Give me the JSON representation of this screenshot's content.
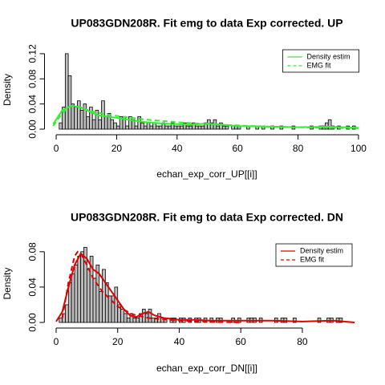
{
  "chart_data": [
    {
      "type": "histogram",
      "title": "UP083GDN208R. Fit emg to data Exp corrected. UP",
      "x_label": "echan_exp_corr_UP[[i]]",
      "y_label": "Density",
      "bins": [
        0,
        1,
        2,
        3,
        4,
        5,
        6,
        7,
        8,
        9,
        10,
        11,
        12,
        13,
        14,
        15,
        16,
        17,
        18,
        19,
        20,
        21,
        22,
        23,
        24,
        25,
        26,
        27,
        28,
        29,
        30,
        31,
        32,
        33,
        34,
        35,
        36,
        37,
        38,
        39,
        40,
        41,
        42,
        43,
        44,
        45,
        46,
        47,
        48,
        49,
        50,
        51,
        52,
        53,
        54,
        55,
        56,
        57,
        58,
        59,
        60,
        61,
        62,
        63,
        64,
        65,
        66,
        67,
        68,
        69,
        70,
        71,
        72,
        73,
        74,
        75,
        76,
        77,
        78,
        79,
        80,
        81,
        82,
        83,
        84,
        85,
        86,
        87,
        88,
        89,
        90,
        91,
        92,
        93,
        94,
        95,
        96,
        97,
        98,
        99
      ],
      "values": [
        0,
        0.01,
        0.035,
        0.12,
        0.085,
        0.04,
        0.035,
        0.045,
        0.03,
        0.04,
        0.02,
        0.035,
        0.015,
        0.03,
        0.015,
        0.045,
        0.02,
        0.025,
        0.015,
        0.01,
        0.005,
        0.02,
        0.02,
        0.005,
        0.02,
        0.015,
        0.005,
        0.02,
        0.01,
        0.005,
        0.01,
        0.005,
        0.01,
        0.005,
        0.005,
        0.01,
        0.005,
        0.005,
        0.01,
        0.005,
        0.005,
        0.005,
        0.01,
        0.005,
        0.005,
        0.01,
        0.005,
        0.005,
        0.005,
        0.01,
        0.015,
        0.01,
        0.015,
        0.005,
        0.01,
        0.005,
        0.005,
        0,
        0.005,
        0.005,
        0.005,
        0,
        0,
        0.005,
        0,
        0,
        0.005,
        0,
        0.005,
        0,
        0,
        0.005,
        0,
        0,
        0.005,
        0,
        0,
        0,
        0.005,
        0,
        0,
        0,
        0,
        0,
        0.005,
        0,
        0,
        0.005,
        0.005,
        0.01,
        0.015,
        0.005,
        0,
        0.005,
        0,
        0,
        0.005,
        0,
        0.005
      ],
      "color": "#bebebe",
      "xlim": [
        -2,
        102
      ],
      "ylim": [
        0,
        0.125
      ],
      "xticks": [
        0,
        20,
        40,
        60,
        80,
        100
      ],
      "yticks": [
        {
          "value": 0,
          "label": "0.00"
        },
        {
          "value": 0.04,
          "label": "0.04"
        },
        {
          "value": 0.08,
          "label": "0.08"
        },
        {
          "value": 0.12,
          "label": "0.12"
        }
      ],
      "legend": "topright",
      "series": [
        {
          "name": "Density estim",
          "color": "#33ee33",
          "dash": false,
          "x": [
            -1,
            2,
            5,
            8,
            11,
            14,
            17,
            20,
            25,
            30,
            35,
            40,
            45,
            50,
            55,
            60,
            70,
            80,
            90,
            100
          ],
          "values": [
            0.008,
            0.03,
            0.037,
            0.035,
            0.028,
            0.022,
            0.02,
            0.018,
            0.014,
            0.011,
            0.009,
            0.008,
            0.007,
            0.009,
            0.007,
            0.005,
            0.004,
            0.003,
            0.004,
            0.002
          ]
        },
        {
          "name": "EMG fit",
          "color": "#33ee33",
          "dash": true,
          "x": [
            -1,
            2,
            4,
            6,
            8,
            12,
            16,
            20,
            30,
            40,
            50,
            60,
            70,
            80,
            90,
            100
          ],
          "values": [
            0.005,
            0.025,
            0.035,
            0.037,
            0.034,
            0.028,
            0.024,
            0.021,
            0.015,
            0.011,
            0.008,
            0.006,
            0.004,
            0.003,
            0.002,
            0.0015
          ]
        }
      ]
    },
    {
      "type": "histogram",
      "title": "UP083GDN208R. Fit emg to data Exp corrected. DN",
      "x_label": "echan_exp_corr_DN[[i]]",
      "y_label": "Density",
      "bins": [
        0,
        1,
        2,
        3,
        4,
        5,
        6,
        7,
        8,
        9,
        10,
        11,
        12,
        13,
        14,
        15,
        16,
        17,
        18,
        19,
        20,
        21,
        22,
        23,
        24,
        25,
        26,
        27,
        28,
        29,
        30,
        31,
        32,
        33,
        34,
        35,
        36,
        37,
        38,
        39,
        40,
        41,
        42,
        43,
        44,
        45,
        46,
        47,
        48,
        49,
        50,
        51,
        52,
        53,
        54,
        55,
        56,
        57,
        58,
        59,
        60,
        61,
        62,
        63,
        64,
        65,
        66,
        67,
        68,
        69,
        70,
        71,
        72,
        73,
        74,
        75,
        76,
        77,
        78,
        79,
        80,
        81,
        82,
        83,
        84,
        85,
        86,
        87,
        88,
        89,
        90,
        91,
        92,
        93,
        94,
        95,
        96,
        97,
        98
      ],
      "values": [
        0,
        0.005,
        0.01,
        0.02,
        0.045,
        0.055,
        0.065,
        0.075,
        0.08,
        0.085,
        0.06,
        0.075,
        0.05,
        0.065,
        0.035,
        0.06,
        0.045,
        0.03,
        0.03,
        0.04,
        0.02,
        0.015,
        0.01,
        0.005,
        0.01,
        0.005,
        0.005,
        0.01,
        0.015,
        0.01,
        0.015,
        0.005,
        0.005,
        0.01,
        0.005,
        0.005,
        0,
        0.005,
        0.005,
        0,
        0.005,
        0.005,
        0,
        0.005,
        0,
        0.005,
        0.005,
        0,
        0.005,
        0,
        0.005,
        0,
        0.005,
        0.005,
        0,
        0,
        0,
        0.005,
        0,
        0.005,
        0,
        0,
        0.005,
        0.005,
        0.005,
        0,
        0.005,
        0,
        0,
        0,
        0,
        0.005,
        0,
        0.005,
        0.005,
        0,
        0,
        0.005,
        0,
        0,
        0,
        0,
        0,
        0,
        0,
        0.005,
        0,
        0,
        0.005,
        0.005,
        0,
        0.005,
        0.005,
        0,
        0,
        0,
        0,
        0
      ],
      "color": "#bebebe",
      "xlim": [
        -2,
        98
      ],
      "ylim": [
        0,
        0.088
      ],
      "xticks": [
        0,
        20,
        40,
        60,
        80
      ],
      "yticks": [
        {
          "value": 0,
          "label": "0.00"
        },
        {
          "value": 0.04,
          "label": "0.04"
        },
        {
          "value": 0.08,
          "label": "0.08"
        }
      ],
      "legend": "topright",
      "series": [
        {
          "name": "Density estim",
          "color": "#e00000",
          "dash": false,
          "x": [
            0,
            2,
            4,
            6,
            8,
            10,
            12,
            14,
            16,
            18,
            20,
            22,
            24,
            26,
            28,
            30,
            32,
            35,
            40,
            45,
            50,
            60,
            70,
            80,
            90,
            97
          ],
          "values": [
            0.001,
            0.012,
            0.04,
            0.065,
            0.078,
            0.072,
            0.06,
            0.055,
            0.045,
            0.035,
            0.025,
            0.015,
            0.008,
            0.006,
            0.01,
            0.012,
            0.008,
            0.005,
            0.003,
            0.003,
            0.002,
            0.002,
            0.002,
            0.001,
            0.002,
            0
          ]
        },
        {
          "name": "EMG fit",
          "color": "#e00000",
          "dash": true,
          "x": [
            2,
            4,
            6,
            7,
            8,
            10,
            12,
            15,
            20,
            25,
            30,
            40,
            50,
            60
          ],
          "values": [
            0.005,
            0.045,
            0.075,
            0.08,
            0.078,
            0.065,
            0.05,
            0.035,
            0.018,
            0.009,
            0.005,
            0.002,
            0.0005,
            0.0001
          ]
        }
      ]
    }
  ]
}
